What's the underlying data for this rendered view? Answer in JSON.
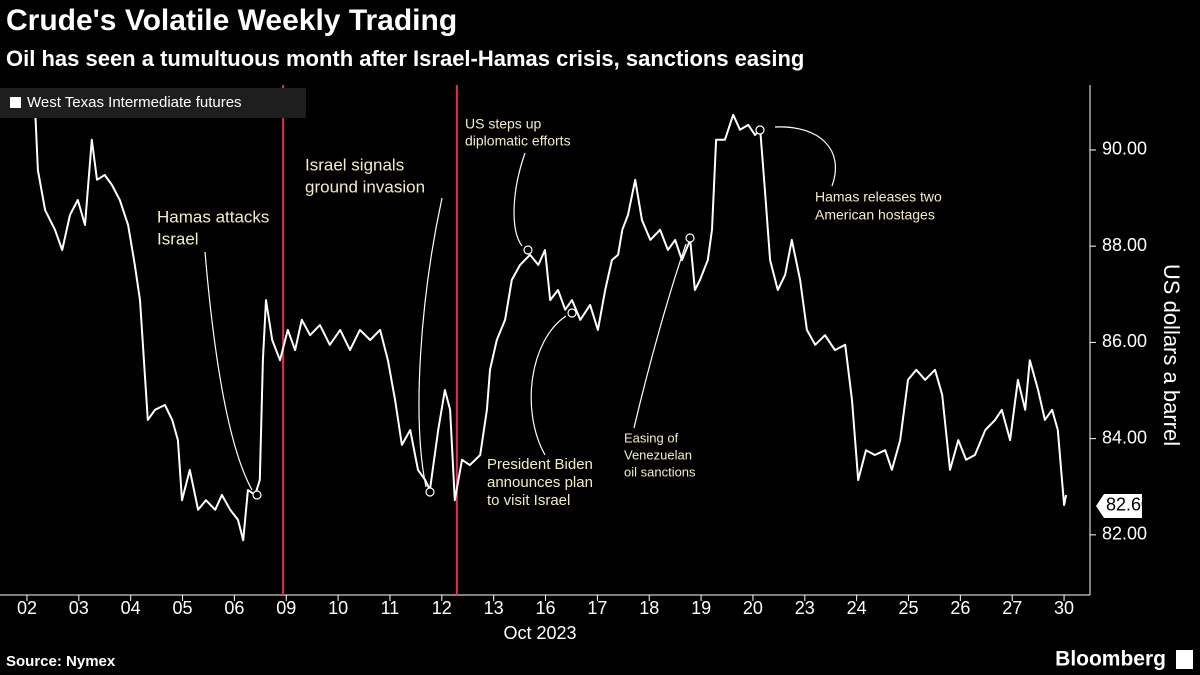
{
  "chart_data": {
    "type": "line",
    "title": "Crude's Volatile Weekly Trading",
    "subtitle": "Oil has seen a tumultuous month after Israel-Hamas crisis, sanctions easing",
    "xlabel": "Oct 2023",
    "ylabel": "US dollars a barrel",
    "source": "Source: Nymex",
    "brand": "Bloomberg",
    "legend": "top-left",
    "xlim": [
      -0.52,
      20.5
    ],
    "xticks": [
      {
        "value": 0,
        "label": "02"
      },
      {
        "value": 1,
        "label": "03"
      },
      {
        "value": 2,
        "label": "04"
      },
      {
        "value": 3,
        "label": "05"
      },
      {
        "value": 4,
        "label": "06"
      },
      {
        "value": 5,
        "label": "09"
      },
      {
        "value": 6,
        "label": "10"
      },
      {
        "value": 7,
        "label": "11"
      },
      {
        "value": 8,
        "label": "12"
      },
      {
        "value": 9,
        "label": "13"
      },
      {
        "value": 10,
        "label": "16"
      },
      {
        "value": 11,
        "label": "17"
      },
      {
        "value": 12,
        "label": "18"
      },
      {
        "value": 13,
        "label": "19"
      },
      {
        "value": 14,
        "label": "20"
      },
      {
        "value": 15,
        "label": "23"
      },
      {
        "value": 16,
        "label": "24"
      },
      {
        "value": 17,
        "label": "25"
      },
      {
        "value": 18,
        "label": "26"
      },
      {
        "value": 19,
        "label": "27"
      },
      {
        "value": 20,
        "label": "30"
      }
    ],
    "ylim": [
      80.75,
      91.35
    ],
    "yticks": [
      {
        "value": 82,
        "label": "82.00"
      },
      {
        "value": 84,
        "label": "84.00"
      },
      {
        "value": 86,
        "label": "86.00"
      },
      {
        "value": 88,
        "label": "88.00"
      },
      {
        "value": 90,
        "label": "90.00"
      }
    ],
    "events": {
      "color": "#e8304a",
      "x": [
        4.94,
        8.29
      ]
    },
    "end_label": {
      "value": 82.6,
      "label": "82.60"
    },
    "x": [
      0.15,
      0.21,
      0.35,
      0.54,
      0.68,
      0.83,
      0.98,
      1.12,
      1.25,
      1.35,
      1.5,
      1.64,
      1.79,
      1.95,
      2.08,
      2.18,
      2.28,
      2.33,
      2.47,
      2.66,
      2.8,
      2.91,
      2.99,
      3.14,
      3.3,
      3.45,
      3.63,
      3.76,
      3.92,
      4.07,
      4.17,
      4.26,
      4.4,
      4.49,
      4.55,
      4.61,
      4.73,
      4.88,
      5.03,
      5.17,
      5.3,
      5.46,
      5.65,
      5.84,
      6.04,
      6.23,
      6.42,
      6.62,
      6.81,
      6.96,
      7.1,
      7.23,
      7.39,
      7.54,
      7.68,
      7.77,
      7.93,
      8.06,
      8.16,
      8.25,
      8.39,
      8.54,
      8.74,
      8.87,
      8.93,
      9.06,
      9.22,
      9.35,
      9.51,
      9.7,
      9.86,
      9.99,
      10.09,
      10.24,
      10.38,
      10.51,
      10.67,
      10.86,
      11.01,
      11.15,
      11.28,
      11.4,
      11.48,
      11.59,
      11.73,
      11.86,
      12.02,
      12.21,
      12.36,
      12.5,
      12.63,
      12.79,
      12.88,
      12.98,
      13.13,
      13.21,
      13.29,
      13.46,
      13.62,
      13.75,
      13.91,
      14.04,
      14.14,
      14.23,
      14.33,
      14.48,
      14.62,
      14.75,
      14.91,
      15.04,
      15.2,
      15.39,
      15.58,
      15.78,
      15.91,
      16.03,
      16.18,
      16.35,
      16.55,
      16.68,
      16.84,
      16.99,
      17.15,
      17.32,
      17.51,
      17.65,
      17.8,
      17.96,
      18.11,
      18.28,
      18.48,
      18.67,
      18.8,
      18.96,
      19.11,
      19.25,
      19.34,
      19.5,
      19.63,
      19.77,
      19.88,
      19.96,
      20.0,
      20.04
    ],
    "series": [
      {
        "name": "West Texas Intermediate futures",
        "color": "#ffffff",
        "values": [
          91.04,
          89.58,
          88.75,
          88.34,
          87.92,
          88.65,
          88.96,
          88.44,
          90.21,
          89.38,
          89.48,
          89.27,
          88.96,
          88.44,
          87.61,
          86.88,
          85.22,
          84.39,
          84.6,
          84.7,
          84.39,
          83.97,
          82.72,
          83.35,
          82.52,
          82.72,
          82.52,
          82.83,
          82.52,
          82.31,
          81.89,
          82.93,
          82.83,
          83.14,
          85.63,
          86.88,
          86.05,
          85.63,
          86.26,
          85.84,
          86.47,
          86.15,
          86.36,
          85.95,
          86.26,
          85.84,
          86.26,
          86.05,
          86.26,
          85.63,
          84.8,
          83.87,
          84.18,
          83.35,
          83.14,
          82.93,
          84.18,
          85.01,
          84.6,
          82.72,
          83.56,
          83.45,
          83.66,
          84.6,
          85.43,
          86.05,
          86.47,
          87.3,
          87.61,
          87.82,
          87.61,
          87.92,
          86.88,
          87.09,
          86.68,
          86.88,
          86.47,
          86.78,
          86.26,
          87.09,
          87.71,
          87.82,
          88.34,
          88.65,
          89.38,
          88.54,
          88.13,
          88.34,
          87.92,
          88.13,
          87.71,
          88.13,
          87.09,
          87.3,
          87.71,
          88.34,
          90.21,
          90.21,
          90.73,
          90.42,
          90.52,
          90.31,
          90.42,
          89.17,
          87.71,
          87.09,
          87.4,
          88.13,
          87.3,
          86.26,
          85.95,
          86.15,
          85.84,
          85.95,
          84.8,
          83.14,
          83.76,
          83.66,
          83.76,
          83.35,
          83.97,
          85.22,
          85.43,
          85.22,
          85.43,
          84.91,
          83.35,
          83.97,
          83.56,
          83.66,
          84.18,
          84.39,
          84.6,
          83.97,
          85.22,
          84.6,
          85.63,
          85.01,
          84.39,
          84.6,
          84.18,
          83.14,
          82.62,
          82.83
        ]
      }
    ],
    "annotations": [
      {
        "text": [
          "Hamas attacks",
          "Israel"
        ]
      },
      {
        "text": [
          "Israel signals",
          "ground invasion"
        ]
      },
      {
        "text": [
          "US steps up",
          "diplomatic efforts"
        ]
      },
      {
        "text": [
          "President Biden",
          "announces plan",
          "to visit Israel"
        ]
      },
      {
        "text": [
          "Easing of",
          "Venezuelan",
          "oil sanctions"
        ]
      },
      {
        "text": [
          "Hamas releases two",
          "American hostages"
        ]
      }
    ]
  }
}
